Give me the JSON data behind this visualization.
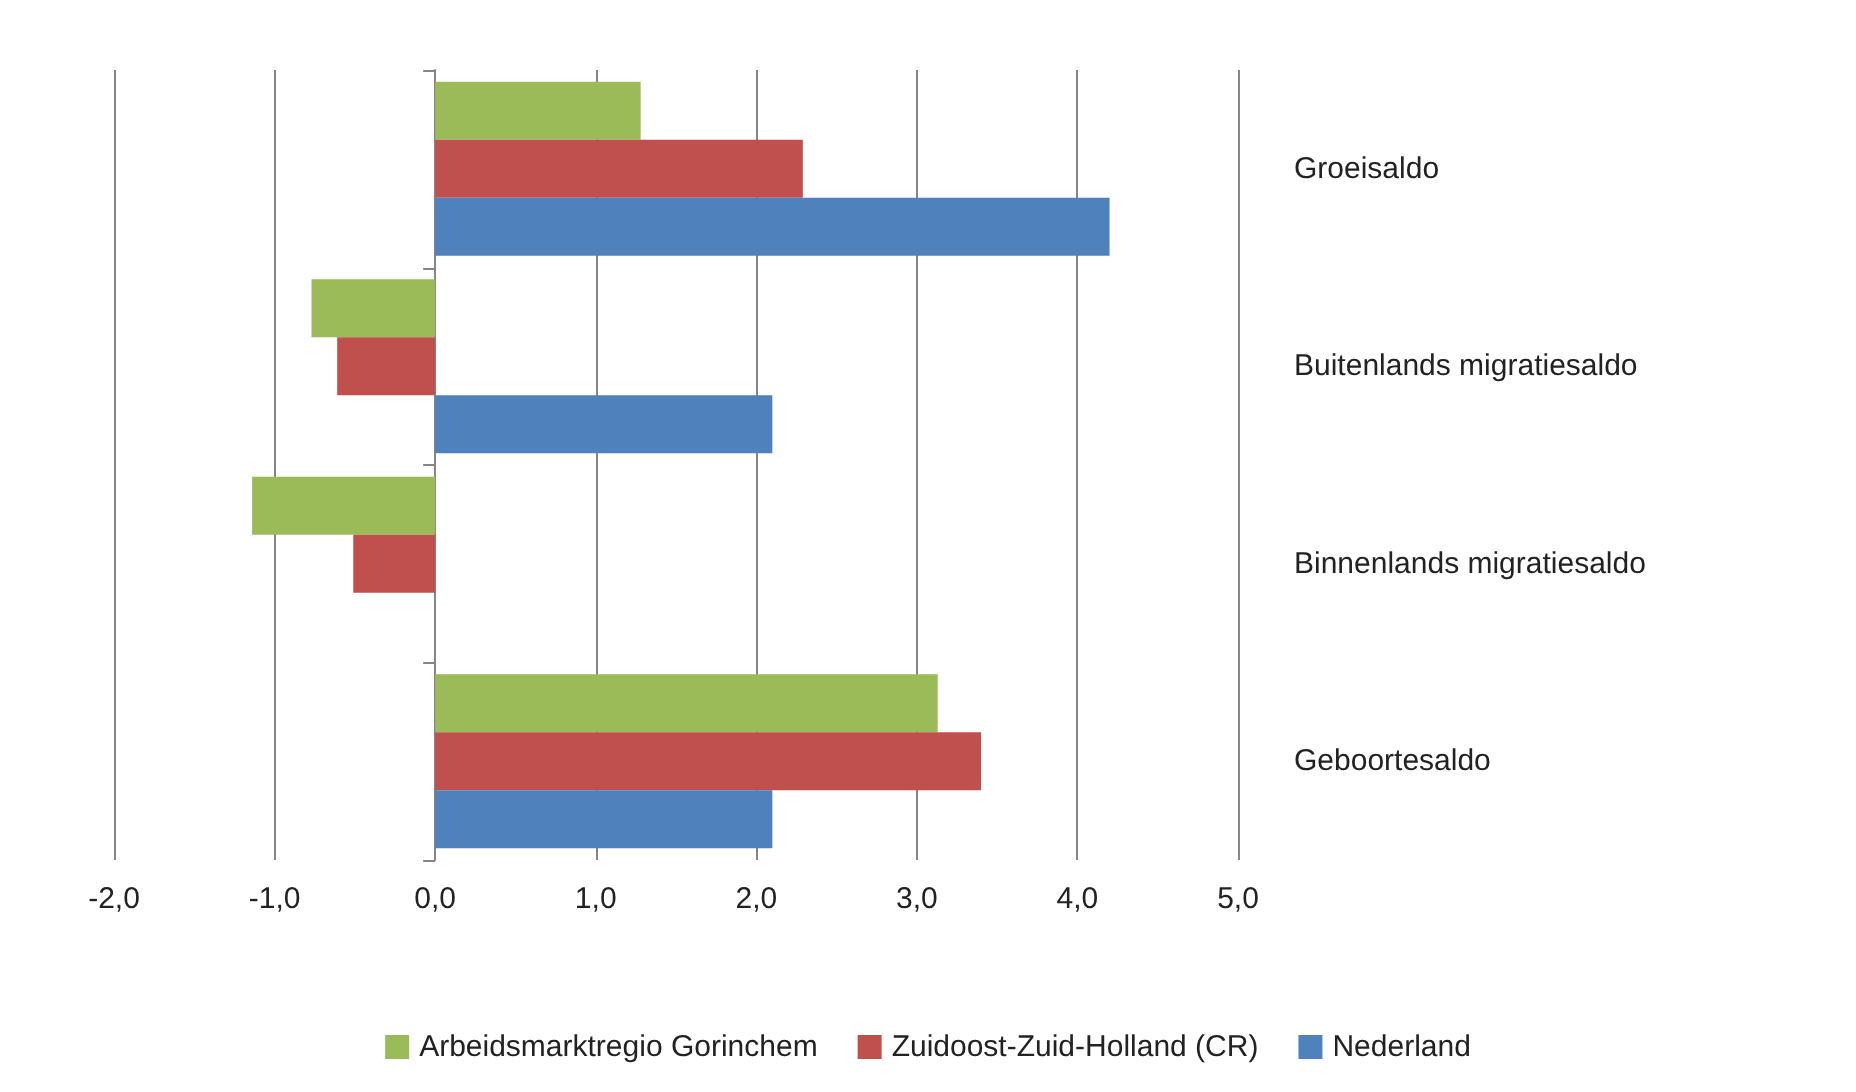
{
  "chart_data": {
    "type": "bar",
    "orientation": "horizontal",
    "categories": [
      "Groeisaldo",
      "Buitenlands migratiesaldo",
      "Binnenlands migratiesaldo",
      "Geboortesaldo"
    ],
    "series": [
      {
        "name": "Arbeidsmarktregio Gorinchem",
        "color": "#9bbb59",
        "values": [
          1.28,
          -0.77,
          -1.14,
          3.13
        ]
      },
      {
        "name": "Zuidoost-Zuid-Holland (CR)",
        "color": "#c0504d",
        "values": [
          2.29,
          -0.61,
          -0.51,
          3.4
        ]
      },
      {
        "name": "Nederland",
        "color": "#4f81bd",
        "values": [
          4.2,
          2.1,
          null,
          2.1
        ]
      }
    ],
    "xlim": [
      -2,
      5
    ],
    "xticks": [
      {
        "value": -2,
        "label": "-2,0"
      },
      {
        "value": -1,
        "label": "-1,0"
      },
      {
        "value": 0,
        "label": "0,0"
      },
      {
        "value": 1,
        "label": "1,0"
      },
      {
        "value": 2,
        "label": "2,0"
      },
      {
        "value": 3,
        "label": "3,0"
      },
      {
        "value": 4,
        "label": "4,0"
      },
      {
        "value": 5,
        "label": "5,0"
      }
    ],
    "grid": "x",
    "legend": "bottom"
  }
}
